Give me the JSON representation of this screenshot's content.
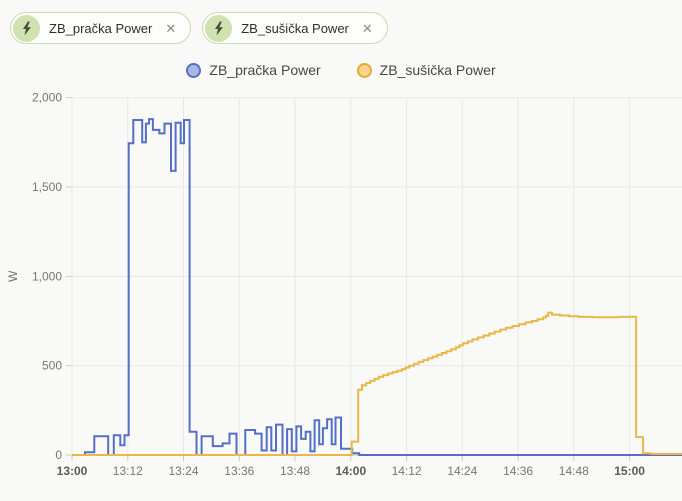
{
  "app": {
    "background": "#f9f9f8"
  },
  "chips": [
    {
      "label": "ZB_pračka Power",
      "icon": "lightning-bolt",
      "close_glyph": "✕",
      "bg": "#fdfdfb",
      "border_color": "#cbdcae",
      "avatar_bg": "#cfe2b0",
      "icon_color": "#454d3d"
    },
    {
      "label": "ZB_sušička Power",
      "icon": "lightning-bolt",
      "close_glyph": "✕",
      "bg": "#fdfdfb",
      "border_color": "#cbdcae",
      "avatar_bg": "#cfe2b0",
      "icon_color": "#454d3d"
    }
  ],
  "legend": [
    {
      "label": "ZB_pračka Power",
      "dot_fill": "#a9b7e6",
      "dot_border": "#5470c6"
    },
    {
      "label": "ZB_sušička Power",
      "dot_fill": "#f7d68a",
      "dot_border": "#e2ab3c"
    }
  ],
  "chart_data": {
    "type": "line",
    "step": "end",
    "title": "",
    "xlabel": "",
    "ylabel": "W",
    "ylim": [
      0,
      2000
    ],
    "xlim_minutes": [
      0,
      131.3
    ],
    "grid": true,
    "legend_position": "top",
    "colors": {
      "grid": "#e8e8e8",
      "axis": "#cccccc",
      "tick_label": "#767676",
      "tick_label_bold": "#5a5a5a",
      "axis_name": "#6f6f6f"
    },
    "y_ticks": [
      {
        "label": "0",
        "value": 0
      },
      {
        "label": "500",
        "value": 500
      },
      {
        "label": "1,000",
        "value": 1000
      },
      {
        "label": "1,500",
        "value": 1500
      },
      {
        "label": "2,000",
        "value": 2000
      }
    ],
    "x_ticks": [
      {
        "label": "13:00",
        "minute": 0,
        "bold": true
      },
      {
        "label": "13:12",
        "minute": 12,
        "bold": false
      },
      {
        "label": "13:24",
        "minute": 24,
        "bold": false
      },
      {
        "label": "13:36",
        "minute": 36,
        "bold": false
      },
      {
        "label": "13:48",
        "minute": 48,
        "bold": false
      },
      {
        "label": "14:00",
        "minute": 60,
        "bold": true
      },
      {
        "label": "14:12",
        "minute": 72,
        "bold": false
      },
      {
        "label": "14:24",
        "minute": 84,
        "bold": false
      },
      {
        "label": "14:36",
        "minute": 96,
        "bold": false
      },
      {
        "label": "14:48",
        "minute": 108,
        "bold": false
      },
      {
        "label": "15:00",
        "minute": 120,
        "bold": true
      }
    ],
    "series": [
      {
        "name": "ZB_pračka Power",
        "color": "#5470c6",
        "unit": "W",
        "points_minute_watt": [
          [
            0,
            0
          ],
          [
            2.8,
            15
          ],
          [
            4.8,
            105
          ],
          [
            7.8,
            0
          ],
          [
            9.0,
            110
          ],
          [
            10.4,
            55
          ],
          [
            11.3,
            110
          ],
          [
            12.2,
            1745
          ],
          [
            13.2,
            1875
          ],
          [
            15.1,
            1750
          ],
          [
            15.9,
            1855
          ],
          [
            16.6,
            1880
          ],
          [
            17.4,
            1820
          ],
          [
            18.8,
            1800
          ],
          [
            19.9,
            1855
          ],
          [
            21.3,
            1590
          ],
          [
            22.3,
            1860
          ],
          [
            23.4,
            1745
          ],
          [
            24.1,
            1875
          ],
          [
            25.3,
            130
          ],
          [
            26.8,
            0
          ],
          [
            27.9,
            105
          ],
          [
            30.3,
            50
          ],
          [
            32.4,
            65
          ],
          [
            33.9,
            120
          ],
          [
            35.4,
            0
          ],
          [
            37.3,
            140
          ],
          [
            39.4,
            120
          ],
          [
            40.8,
            25
          ],
          [
            41.9,
            155
          ],
          [
            42.9,
            25
          ],
          [
            43.9,
            170
          ],
          [
            45.3,
            0
          ],
          [
            46.3,
            145
          ],
          [
            47.3,
            20
          ],
          [
            48.3,
            160
          ],
          [
            49.3,
            90
          ],
          [
            50.3,
            130
          ],
          [
            51.3,
            20
          ],
          [
            52.2,
            195
          ],
          [
            53.2,
            60
          ],
          [
            54.0,
            150
          ],
          [
            54.9,
            200
          ],
          [
            55.9,
            60
          ],
          [
            56.7,
            210
          ],
          [
            57.9,
            35
          ],
          [
            60.3,
            10
          ],
          [
            61.8,
            0
          ]
        ]
      },
      {
        "name": "ZB_sušička Power",
        "color": "#e9b848",
        "unit": "W",
        "points_minute_watt": [
          [
            0,
            0
          ],
          [
            60.2,
            75
          ],
          [
            61.6,
            365
          ],
          [
            62.4,
            390
          ],
          [
            63.3,
            403
          ],
          [
            64.2,
            415
          ],
          [
            65.1,
            426
          ],
          [
            66.0,
            437
          ],
          [
            67.0,
            447
          ],
          [
            68.0,
            456
          ],
          [
            69.0,
            464
          ],
          [
            70.0,
            472
          ],
          [
            71.0,
            481
          ],
          [
            71.8,
            490
          ],
          [
            72.6,
            500
          ],
          [
            73.6,
            510
          ],
          [
            74.6,
            521
          ],
          [
            75.6,
            531
          ],
          [
            76.6,
            541
          ],
          [
            77.6,
            551
          ],
          [
            78.6,
            561
          ],
          [
            79.6,
            571
          ],
          [
            80.6,
            581
          ],
          [
            81.6,
            592
          ],
          [
            82.6,
            603
          ],
          [
            83.4,
            614
          ],
          [
            84.2,
            625
          ],
          [
            85.2,
            636
          ],
          [
            86.2,
            647
          ],
          [
            87.4,
            658
          ],
          [
            88.6,
            669
          ],
          [
            89.8,
            680
          ],
          [
            91.0,
            691
          ],
          [
            92.2,
            702
          ],
          [
            93.4,
            712
          ],
          [
            94.8,
            722
          ],
          [
            96.2,
            732
          ],
          [
            97.6,
            742
          ],
          [
            99.0,
            750
          ],
          [
            100.2,
            760
          ],
          [
            101.4,
            770
          ],
          [
            102.0,
            780
          ],
          [
            102.5,
            797
          ],
          [
            103.3,
            786
          ],
          [
            105.0,
            781
          ],
          [
            107.0,
            777
          ],
          [
            109.0,
            773
          ],
          [
            112.0,
            771
          ],
          [
            115.0,
            771
          ],
          [
            117.5,
            773
          ],
          [
            120.0,
            774
          ],
          [
            121.4,
            100
          ],
          [
            122.9,
            10
          ],
          [
            124.5,
            6
          ]
        ]
      }
    ]
  }
}
